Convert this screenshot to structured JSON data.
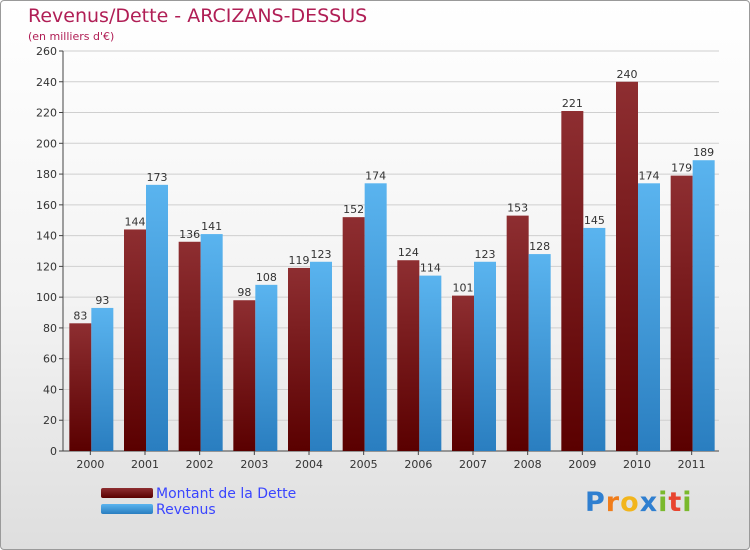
{
  "header": {
    "title": "Revenus/Dette - ARCIZANS-DESSUS",
    "subtitle": "(en milliers d'€)"
  },
  "legend": [
    {
      "label": "Montant de la Dette",
      "color": "#7a1a1c"
    },
    {
      "label": "Revenus",
      "color": "#3fa0e4"
    }
  ],
  "logo": {
    "text": "Proxiti",
    "letters": [
      {
        "char": "P",
        "color": "#2f7fd0"
      },
      {
        "char": "r",
        "color": "#f07d1b"
      },
      {
        "char": "o",
        "color": "#f2b51c"
      },
      {
        "char": "x",
        "color": "#2f7fd0"
      },
      {
        "char": "i",
        "color": "#7ab92c"
      },
      {
        "char": "t",
        "color": "#e8452f"
      },
      {
        "char": "i",
        "color": "#7ab92c"
      }
    ]
  },
  "chart_data": {
    "type": "bar",
    "title": "Revenus/Dette - ARCIZANS-DESSUS",
    "subtitle": "(en milliers d'€)",
    "categories": [
      "2000",
      "2001",
      "2002",
      "2003",
      "2004",
      "2005",
      "2006",
      "2007",
      "2008",
      "2009",
      "2010",
      "2011"
    ],
    "series": [
      {
        "name": "Montant de la Dette",
        "color": "#7a1a1c",
        "values": [
          83,
          144,
          136,
          98,
          119,
          152,
          124,
          101,
          153,
          221,
          240,
          179
        ]
      },
      {
        "name": "Revenus",
        "color": "#3fa0e4",
        "values": [
          93,
          173,
          141,
          108,
          123,
          174,
          114,
          123,
          128,
          145,
          174,
          189
        ]
      }
    ],
    "ylim": [
      0,
      260
    ],
    "yticks": [
      0,
      20,
      40,
      60,
      80,
      100,
      120,
      140,
      160,
      180,
      200,
      220,
      240,
      260
    ],
    "grid": true,
    "legend_position": "bottom-left"
  }
}
